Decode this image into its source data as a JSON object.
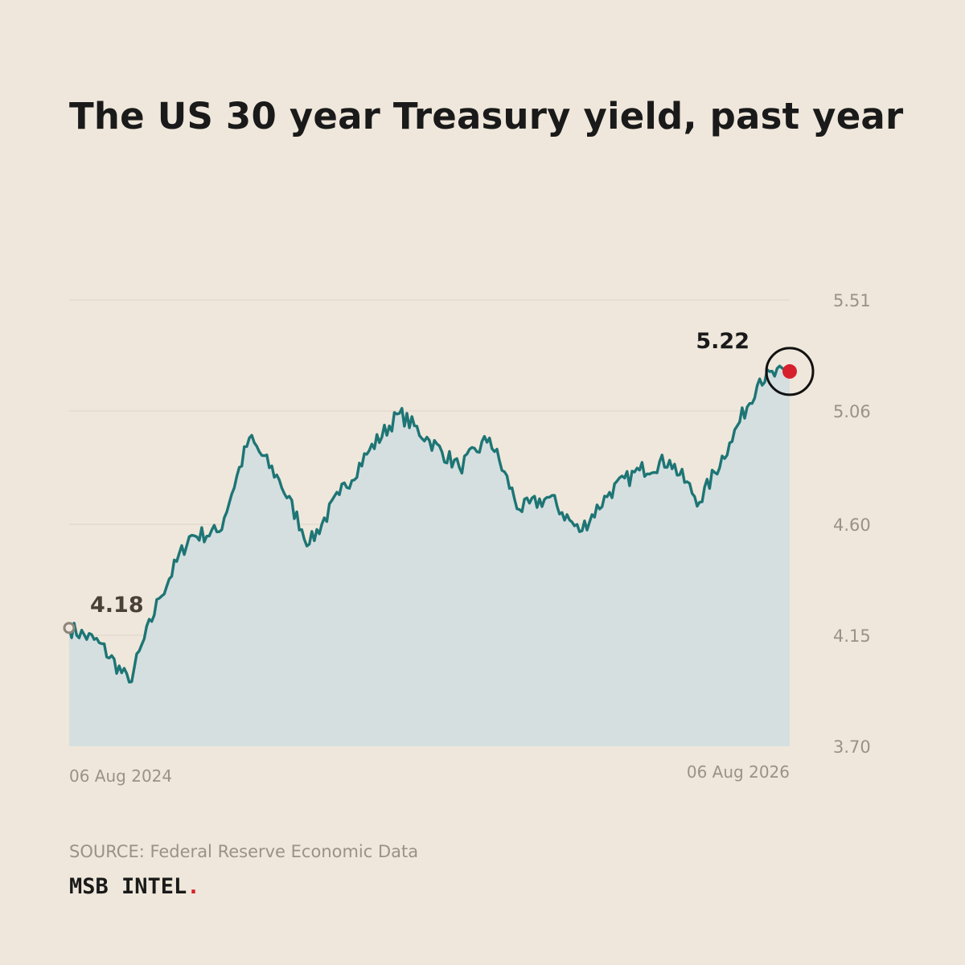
{
  "title": "The US 30 year Treasury yield, past year",
  "source": "SOURCE: Federal Reserve Economic Data",
  "brand": {
    "name": "MSB INTEL",
    "dot": "."
  },
  "colors": {
    "background": "#EFE7DB",
    "line": "#1E7575",
    "area": "#D5DFE0",
    "grid": "#DCD4C8",
    "axis_text": "#9A9288",
    "start_label": "#4A4038",
    "end_label": "#1A1A1A",
    "end_marker": "#D6202E"
  },
  "chart_data": {
    "type": "area",
    "x": [
      "06 Aug 2024",
      "Sep 2024",
      "Oct 2024",
      "Nov 2024",
      "Dec 2024",
      "Jan 2025",
      "Feb 2025",
      "Mar 2025",
      "Apr 2025",
      "May 2025",
      "Jun 2025",
      "Jul 2025",
      "Aug 2025",
      "Sep 2025",
      "Oct 2025",
      "Nov 2025",
      "Dec 2025",
      "Jan 2026",
      "Feb 2026",
      "Mar 2026",
      "Apr 2026",
      "May 2026",
      "Jun 2026",
      "Jul 2026",
      "06 Aug 2026"
    ],
    "series": [
      {
        "values": [
          4.18,
          4.12,
          3.96,
          4.3,
          4.55,
          4.57,
          4.95,
          4.78,
          4.52,
          4.72,
          4.9,
          5.05,
          4.94,
          4.83,
          4.95,
          4.66,
          4.71,
          4.57,
          4.73,
          4.82,
          4.86,
          4.69,
          4.93,
          5.19,
          5.22
        ]
      }
    ],
    "ylim": [
      3.7,
      5.51
    ],
    "yticks": [
      "5.51",
      "5.06",
      "4.60",
      "4.15",
      "3.70"
    ],
    "xticks": [
      "06 Aug 2024",
      "06 Aug 2026"
    ],
    "start_label": "4.18",
    "end_label": "5.22",
    "grid": true
  }
}
